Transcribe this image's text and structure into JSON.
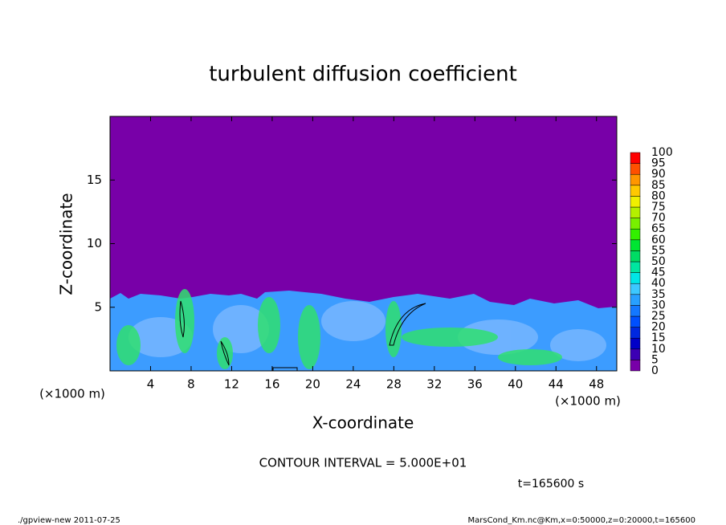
{
  "chart_data": {
    "type": "heatmap",
    "title": "turbulent diffusion coefficient",
    "x_label": "X-coordinate",
    "y_label": "Z-coordinate",
    "x_unit": "(×1000 m)",
    "y_unit": "(×1000 m)",
    "xlim": [
      0,
      50
    ],
    "ylim": [
      0,
      20
    ],
    "xticks": [
      4,
      8,
      12,
      16,
      20,
      24,
      28,
      32,
      36,
      40,
      44,
      48
    ],
    "yticks": [
      5,
      10,
      15
    ],
    "colorbar": {
      "levels": [
        0,
        5,
        10,
        15,
        20,
        25,
        30,
        35,
        40,
        45,
        50,
        55,
        60,
        65,
        70,
        75,
        80,
        85,
        90,
        95,
        100
      ],
      "colors": [
        "#7800a8",
        "#3c00b4",
        "#0000c8",
        "#0028e0",
        "#0050ff",
        "#1478ff",
        "#28a0ff",
        "#3cc8ff",
        "#00e6e6",
        "#00e6a0",
        "#00dc64",
        "#00e632",
        "#32f000",
        "#78f000",
        "#b4f000",
        "#f0f000",
        "#ffc800",
        "#ff9600",
        "#ff5000",
        "#ff0000"
      ]
    },
    "contour_note": "CONTOUR INTERVAL = 5.000E+01",
    "time_note": "t=165600 s",
    "footer_left": "./gpview-new   2011-07-25",
    "footer_right": "MarsCond_Km.nc@Km,x=0:50000,z=0:20000,t=165600"
  }
}
